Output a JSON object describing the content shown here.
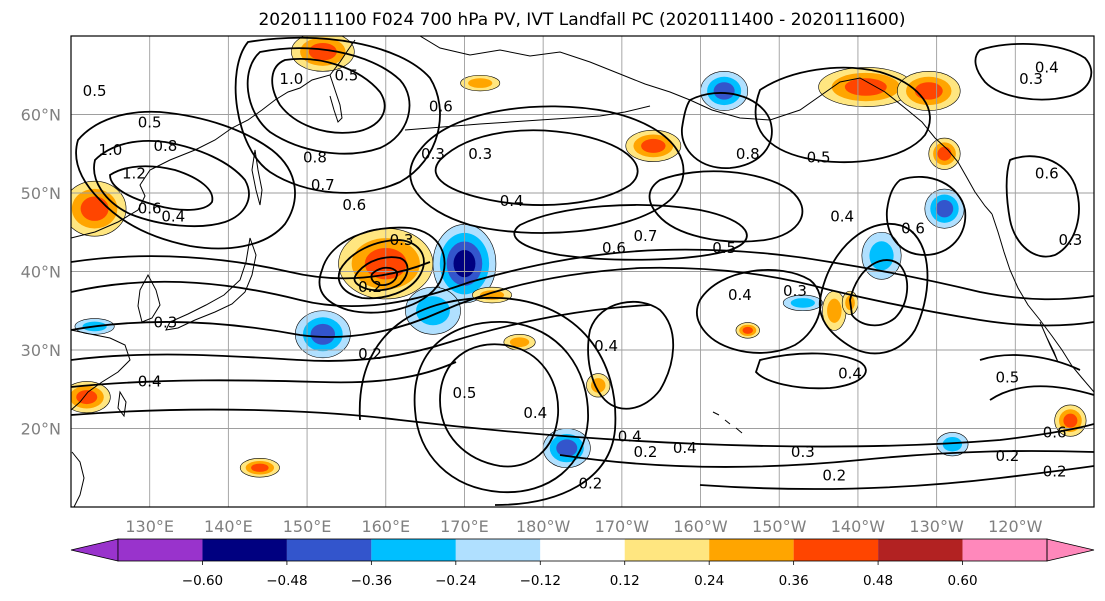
{
  "chart_data": {
    "type": "heatmap",
    "title": "2020111100 F024 700 hPa PV, IVT Landfall PC (2020111400 - 2020111600)",
    "x_range_deg_east": [
      120,
      250
    ],
    "y_range_deg_north": [
      10,
      70
    ],
    "grid": true,
    "x_ticks": [
      {
        "lon": 130,
        "label": "130°E"
      },
      {
        "lon": 140,
        "label": "140°E"
      },
      {
        "lon": 150,
        "label": "150°E"
      },
      {
        "lon": 160,
        "label": "160°E"
      },
      {
        "lon": 170,
        "label": "170°E"
      },
      {
        "lon": 180,
        "label": "180°W"
      },
      {
        "lon": 190,
        "label": "170°W"
      },
      {
        "lon": 200,
        "label": "160°W"
      },
      {
        "lon": 210,
        "label": "150°W"
      },
      {
        "lon": 220,
        "label": "140°W"
      },
      {
        "lon": 230,
        "label": "130°W"
      },
      {
        "lon": 240,
        "label": "120°W"
      }
    ],
    "y_ticks": [
      {
        "lat": 20,
        "label": "20°N"
      },
      {
        "lat": 30,
        "label": "30°N"
      },
      {
        "lat": 40,
        "label": "40°N"
      },
      {
        "lat": 50,
        "label": "50°N"
      },
      {
        "lat": 60,
        "label": "60°N"
      }
    ],
    "colorbar": {
      "levels": [
        -0.72,
        -0.6,
        -0.48,
        -0.36,
        -0.24,
        -0.12,
        0.12,
        0.24,
        0.36,
        0.48,
        0.6,
        0.72
      ],
      "tick_values": [
        -0.6,
        -0.48,
        -0.36,
        -0.24,
        -0.12,
        0.12,
        0.24,
        0.36,
        0.48,
        0.6
      ],
      "tick_labels": [
        "−0.60",
        "−0.48",
        "−0.36",
        "−0.24",
        "−0.12",
        "0.12",
        "0.24",
        "0.36",
        "0.48",
        "0.60"
      ],
      "colors": [
        "#9933cc",
        "#000080",
        "#3355cc",
        "#00bfff",
        "#b0e0ff",
        "#ffffff",
        "#ffe680",
        "#ffa500",
        "#ff4500",
        "#b22222",
        "#ff88bb"
      ],
      "extend": "both"
    },
    "shaded_regions": [
      {
        "lon": 160,
        "lat": 41,
        "rx": 6,
        "ry": 4.5,
        "value": 0.45
      },
      {
        "lon": 170,
        "lat": 41,
        "rx": 4,
        "ry": 5,
        "value": -0.5
      },
      {
        "lon": 166,
        "lat": 35,
        "rx": 3.5,
        "ry": 3,
        "value": -0.35
      },
      {
        "lon": 152,
        "lat": 32,
        "rx": 3.5,
        "ry": 3,
        "value": -0.4
      },
      {
        "lon": 123,
        "lat": 48,
        "rx": 4,
        "ry": 3.5,
        "value": 0.42
      },
      {
        "lon": 152,
        "lat": 68,
        "rx": 4,
        "ry": 2.5,
        "value": 0.42
      },
      {
        "lon": 221,
        "lat": 63.5,
        "rx": 6,
        "ry": 2.5,
        "value": 0.45
      },
      {
        "lon": 229,
        "lat": 63,
        "rx": 4,
        "ry": 2.5,
        "value": 0.4
      },
      {
        "lon": 203,
        "lat": 63,
        "rx": 3,
        "ry": 2.5,
        "value": -0.42
      },
      {
        "lon": 194,
        "lat": 56,
        "rx": 3.5,
        "ry": 2,
        "value": 0.4
      },
      {
        "lon": 231,
        "lat": 48,
        "rx": 2.5,
        "ry": 2.5,
        "value": -0.42
      },
      {
        "lon": 223,
        "lat": 42,
        "rx": 2.5,
        "ry": 3,
        "value": -0.35
      },
      {
        "lon": 183,
        "lat": 17.5,
        "rx": 3,
        "ry": 2.5,
        "value": -0.4
      },
      {
        "lon": 144,
        "lat": 15,
        "rx": 2.5,
        "ry": 1.2,
        "value": 0.4
      },
      {
        "lon": 177,
        "lat": 31,
        "rx": 2,
        "ry": 1,
        "value": 0.3
      },
      {
        "lon": 232,
        "lat": 18,
        "rx": 2,
        "ry": 1.5,
        "value": -0.3
      },
      {
        "lon": 217,
        "lat": 35,
        "rx": 1.5,
        "ry": 2.5,
        "value": 0.35
      },
      {
        "lon": 122,
        "lat": 24,
        "rx": 3,
        "ry": 2,
        "value": 0.38
      },
      {
        "lon": 123,
        "lat": 33,
        "rx": 2.5,
        "ry": 1,
        "value": -0.3
      },
      {
        "lon": 206,
        "lat": 32.5,
        "rx": 1.5,
        "ry": 1,
        "value": 0.4
      },
      {
        "lon": 231,
        "lat": 55,
        "rx": 2,
        "ry": 2,
        "value": 0.38
      },
      {
        "lon": 187,
        "lat": 25.5,
        "rx": 1.5,
        "ry": 1.5,
        "value": 0.35
      },
      {
        "lon": 173.5,
        "lat": 37,
        "rx": 2.5,
        "ry": 1,
        "value": 0.3
      },
      {
        "lon": 247,
        "lat": 21,
        "rx": 2,
        "ry": 2,
        "value": 0.4
      },
      {
        "lon": 219,
        "lat": 36,
        "rx": 1,
        "ry": 1.5,
        "value": 0.3
      },
      {
        "lon": 172,
        "lat": 64,
        "rx": 2.5,
        "ry": 1,
        "value": 0.35
      },
      {
        "lon": 213,
        "lat": 36,
        "rx": 2.5,
        "ry": 1,
        "value": -0.3
      }
    ],
    "contour_labels": [
      {
        "text": "0.5",
        "lon": 123,
        "lat": 63
      },
      {
        "text": "1.0",
        "lon": 125,
        "lat": 55.5
      },
      {
        "text": "0.8",
        "lon": 132,
        "lat": 56
      },
      {
        "text": "0.5",
        "lon": 130,
        "lat": 59
      },
      {
        "text": "1.2",
        "lon": 128,
        "lat": 52.5
      },
      {
        "text": "0.6",
        "lon": 130,
        "lat": 48
      },
      {
        "text": "0.4",
        "lon": 133,
        "lat": 47
      },
      {
        "text": "1.0",
        "lon": 148,
        "lat": 64.5
      },
      {
        "text": "0.5",
        "lon": 155,
        "lat": 65
      },
      {
        "text": "0.8",
        "lon": 151,
        "lat": 54.5
      },
      {
        "text": "0.7",
        "lon": 152,
        "lat": 51
      },
      {
        "text": "0.6",
        "lon": 156,
        "lat": 48.5
      },
      {
        "text": "0.3",
        "lon": 162,
        "lat": 44
      },
      {
        "text": "0.2",
        "lon": 158,
        "lat": 38
      },
      {
        "text": "0.3",
        "lon": 166,
        "lat": 55
      },
      {
        "text": "0.6",
        "lon": 167,
        "lat": 61
      },
      {
        "text": "0.3",
        "lon": 172,
        "lat": 55
      },
      {
        "text": "0.4",
        "lon": 176,
        "lat": 49
      },
      {
        "text": "0.6",
        "lon": 189,
        "lat": 43
      },
      {
        "text": "0.7",
        "lon": 193,
        "lat": 44.5
      },
      {
        "text": "0.5",
        "lon": 203,
        "lat": 43
      },
      {
        "text": "0.4",
        "lon": 205,
        "lat": 37
      },
      {
        "text": "0.3",
        "lon": 212,
        "lat": 37.5
      },
      {
        "text": "0.5",
        "lon": 215,
        "lat": 54.5
      },
      {
        "text": "0.4",
        "lon": 218,
        "lat": 47
      },
      {
        "text": "0.6",
        "lon": 227,
        "lat": 45.5
      },
      {
        "text": "0.8",
        "lon": 206,
        "lat": 55
      },
      {
        "text": "0.6",
        "lon": 244,
        "lat": 52.5
      },
      {
        "text": "0.3",
        "lon": 242,
        "lat": 64.5
      },
      {
        "text": "0.4",
        "lon": 244,
        "lat": 66
      },
      {
        "text": "0.3",
        "lon": 247,
        "lat": 44
      },
      {
        "text": "0.2",
        "lon": 158,
        "lat": 29.5
      },
      {
        "text": "0.5",
        "lon": 170,
        "lat": 24.5
      },
      {
        "text": "0.4",
        "lon": 188,
        "lat": 30.5
      },
      {
        "text": "0.4",
        "lon": 179,
        "lat": 22
      },
      {
        "text": "0.4",
        "lon": 191,
        "lat": 19
      },
      {
        "text": "0.2",
        "lon": 193,
        "lat": 17
      },
      {
        "text": "0.4",
        "lon": 198,
        "lat": 17.5
      },
      {
        "text": "0.3",
        "lon": 213,
        "lat": 17
      },
      {
        "text": "0.2",
        "lon": 217,
        "lat": 14
      },
      {
        "text": "0.4",
        "lon": 219,
        "lat": 27
      },
      {
        "text": "0.5",
        "lon": 239,
        "lat": 26.5
      },
      {
        "text": "0.6",
        "lon": 245,
        "lat": 19.5
      },
      {
        "text": "0.2",
        "lon": 239,
        "lat": 16.5
      },
      {
        "text": "0.2",
        "lon": 245,
        "lat": 14.5
      },
      {
        "text": "0.2",
        "lon": 186,
        "lat": 13
      },
      {
        "text": "0.3",
        "lon": 132,
        "lat": 33.5
      },
      {
        "text": "0.4",
        "lon": 130,
        "lat": 26
      }
    ]
  }
}
